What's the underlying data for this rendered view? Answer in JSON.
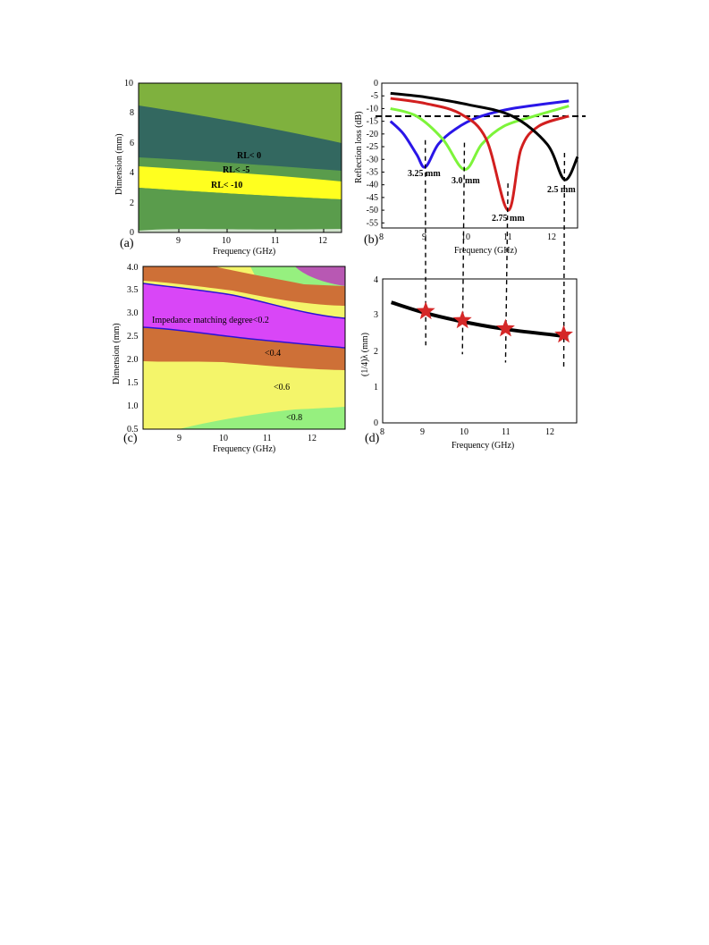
{
  "colors": {
    "green_outer": "#7fb13e",
    "teal": "#336860",
    "mid_green": "#5a9c4c",
    "yellow": "#ffff1f",
    "blue": "#2a16e8",
    "lime": "#7df43a",
    "red": "#d21f1f",
    "black": "#000000",
    "pink": "#b858b3",
    "magenta": "#d946f7",
    "orange": "#ce7037",
    "pale_yellow": "#f4f56a",
    "light_green": "#96f07f",
    "star": "#d52828"
  },
  "panels": {
    "a": {
      "letter": "(a)"
    },
    "b": {
      "letter": "(b)"
    },
    "c": {
      "letter": "(c)"
    },
    "d": {
      "letter": "(d)"
    }
  },
  "chart_data": [
    {
      "id": "a",
      "type": "heatmap",
      "xlabel": "Frequency (GHz)",
      "ylabel": "Dimension (mm)",
      "xlim": [
        8.2,
        12.4
      ],
      "ylim": [
        0,
        10
      ],
      "xticks": [
        "9",
        "10",
        "11",
        "12"
      ],
      "yticks": [
        "0",
        "2",
        "4",
        "6",
        "8",
        "10"
      ],
      "annotations": [
        "RL< 0",
        "RL< -5",
        "RL< -10"
      ],
      "regions": [
        {
          "label": "RL< 0",
          "upper_boundary": {
            "x": [
              8.2,
              10,
              12.4
            ],
            "y": [
              8.5,
              7.4,
              6.0
            ]
          }
        },
        {
          "label": "RL< -5",
          "upper_boundary": {
            "x": [
              8.2,
              10,
              12.4
            ],
            "y": [
              5.2,
              4.7,
              4.3
            ]
          }
        },
        {
          "label": "RL< -10",
          "upper_boundary": {
            "x": [
              8.2,
              10,
              12.4
            ],
            "y": [
              4.4,
              3.9,
              3.4
            ]
          }
        }
      ],
      "grid": false
    },
    {
      "id": "b",
      "type": "line",
      "xlabel": "Frequency (GHz)",
      "ylabel": "Reflection loss (dB)",
      "xlim": [
        8.0,
        12.5
      ],
      "ylim": [
        -57,
        0
      ],
      "xticks": [
        "8",
        "9",
        "10",
        "11",
        "12"
      ],
      "yticks": [
        "0",
        "-5",
        "-10",
        "-15",
        "-20",
        "-25",
        "-30",
        "-35",
        "-40",
        "-45",
        "-50",
        "-55"
      ],
      "reference_line": -13,
      "series": [
        {
          "name": "3.25 mm",
          "color": "#2a16e8",
          "x": [
            8.2,
            8.5,
            8.8,
            9.0,
            9.3,
            9.7,
            10.2,
            11.0,
            12.3
          ],
          "y": [
            -15,
            -20,
            -28,
            -33,
            -24,
            -18,
            -13.5,
            -10,
            -7
          ]
        },
        {
          "name": "3.0 mm",
          "color": "#7df43a",
          "x": [
            8.2,
            8.8,
            9.4,
            9.9,
            10.3,
            10.8,
            11.5,
            12.3
          ],
          "y": [
            -10,
            -13,
            -22,
            -34,
            -24,
            -17,
            -13,
            -9
          ]
        },
        {
          "name": "2.75 mm",
          "color": "#d21f1f",
          "x": [
            8.2,
            9.0,
            9.8,
            10.4,
            10.9,
            11.2,
            11.6,
            12.3
          ],
          "y": [
            -6,
            -8,
            -12,
            -22,
            -50,
            -26,
            -17,
            -13
          ]
        },
        {
          "name": "2.5 mm",
          "color": "#000000",
          "x": [
            8.2,
            9.0,
            10.0,
            11.0,
            11.8,
            12.2,
            12.5
          ],
          "y": [
            -4,
            -5.5,
            -8.5,
            -13,
            -24,
            -38,
            -29
          ]
        }
      ],
      "grid": false
    },
    {
      "id": "c",
      "type": "heatmap",
      "xlabel": "Frequency (GHz)",
      "ylabel": "Dimension (mm)",
      "xlim": [
        8.2,
        12.6
      ],
      "ylim": [
        0.5,
        4.0
      ],
      "xticks": [
        "9",
        "10",
        "11",
        "12"
      ],
      "yticks": [
        "0.5",
        "1.0",
        "1.5",
        "2.0",
        "2.5",
        "3.0",
        "3.5",
        "4.0"
      ],
      "annotations": [
        "Impedance matching degree<0.2",
        "<0.4",
        "<0.6",
        "<0.8"
      ],
      "contours": [
        {
          "level": "0.2 upper",
          "x": [
            8.2,
            9.0,
            10.0,
            11.0,
            12.6
          ],
          "y": [
            3.65,
            3.45,
            3.25,
            3.05,
            2.85
          ]
        },
        {
          "level": "0.2 lower",
          "x": [
            8.2,
            9.0,
            10.0,
            11.0,
            12.6
          ],
          "y": [
            2.7,
            2.65,
            2.45,
            2.4,
            2.2
          ]
        }
      ],
      "grid": false
    },
    {
      "id": "d",
      "type": "line",
      "xlabel": "Frequency (GHz)",
      "ylabel": "(1/4)λ (mm)",
      "xlim": [
        8.0,
        12.5
      ],
      "ylim": [
        0,
        4
      ],
      "xticks": [
        "8",
        "9",
        "10",
        "11",
        "12"
      ],
      "yticks": [
        "0",
        "1",
        "2",
        "3",
        "4"
      ],
      "series": [
        {
          "name": "",
          "color": "#000000",
          "x": [
            8.2,
            9.0,
            10.0,
            11.0,
            12.3
          ],
          "y": [
            3.35,
            3.05,
            2.78,
            2.58,
            2.4
          ]
        }
      ],
      "markers": {
        "x": [
          9.0,
          9.85,
          10.85,
          12.2
        ],
        "y": [
          3.1,
          2.85,
          2.62,
          2.45
        ]
      },
      "grid": false
    }
  ]
}
